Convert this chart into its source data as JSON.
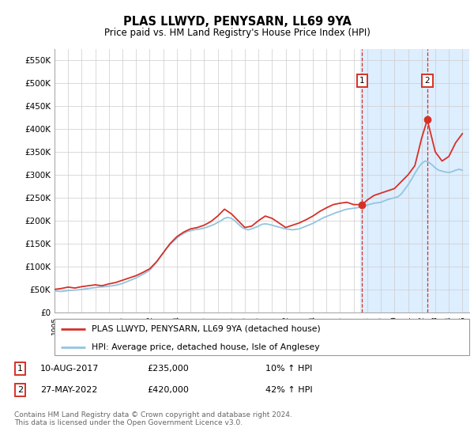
{
  "title": "PLAS LLWYD, PENYSARN, LL69 9YA",
  "subtitle": "Price paid vs. HM Land Registry's House Price Index (HPI)",
  "ylabel_ticks": [
    "£0",
    "£50K",
    "£100K",
    "£150K",
    "£200K",
    "£250K",
    "£300K",
    "£350K",
    "£400K",
    "£450K",
    "£500K",
    "£550K"
  ],
  "ytick_values": [
    0,
    50000,
    100000,
    150000,
    200000,
    250000,
    300000,
    350000,
    400000,
    450000,
    500000,
    550000
  ],
  "ylim": [
    0,
    575000
  ],
  "xlim_start": 1995.0,
  "xlim_end": 2025.5,
  "marker1_x": 2017.608,
  "marker1_y": 235000,
  "marker1_label": "1",
  "marker1_date": "10-AUG-2017",
  "marker1_price": "£235,000",
  "marker1_hpi": "10% ↑ HPI",
  "marker2_x": 2022.414,
  "marker2_y": 420000,
  "marker2_label": "2",
  "marker2_date": "27-MAY-2022",
  "marker2_price": "£420,000",
  "marker2_hpi": "42% ↑ HPI",
  "hpi_color": "#92c5de",
  "price_color": "#d73027",
  "background_shaded_start": 2017.5,
  "background_shaded_end": 2025.5,
  "shaded_color": "#ddeeff",
  "legend_line1": "PLAS LLWYD, PENYSARN, LL69 9YA (detached house)",
  "legend_line2": "HPI: Average price, detached house, Isle of Anglesey",
  "footer": "Contains HM Land Registry data © Crown copyright and database right 2024.\nThis data is licensed under the Open Government Licence v3.0.",
  "hpi_data": [
    [
      1995.0,
      47000
    ],
    [
      1995.25,
      46000
    ],
    [
      1995.5,
      45500
    ],
    [
      1995.75,
      46500
    ],
    [
      1996.0,
      47500
    ],
    [
      1996.25,
      48000
    ],
    [
      1996.5,
      48500
    ],
    [
      1996.75,
      49000
    ],
    [
      1997.0,
      50000
    ],
    [
      1997.25,
      51000
    ],
    [
      1997.5,
      52000
    ],
    [
      1997.75,
      53000
    ],
    [
      1998.0,
      54000
    ],
    [
      1998.25,
      55000
    ],
    [
      1998.5,
      55500
    ],
    [
      1998.75,
      56000
    ],
    [
      1999.0,
      57000
    ],
    [
      1999.25,
      58000
    ],
    [
      1999.5,
      59000
    ],
    [
      1999.75,
      61000
    ],
    [
      2000.0,
      63000
    ],
    [
      2000.25,
      66000
    ],
    [
      2000.5,
      69000
    ],
    [
      2000.75,
      72000
    ],
    [
      2001.0,
      75000
    ],
    [
      2001.25,
      79000
    ],
    [
      2001.5,
      83000
    ],
    [
      2001.75,
      87000
    ],
    [
      2002.0,
      92000
    ],
    [
      2002.25,
      100000
    ],
    [
      2002.5,
      110000
    ],
    [
      2002.75,
      120000
    ],
    [
      2003.0,
      130000
    ],
    [
      2003.25,
      140000
    ],
    [
      2003.5,
      148000
    ],
    [
      2003.75,
      155000
    ],
    [
      2004.0,
      162000
    ],
    [
      2004.25,
      168000
    ],
    [
      2004.5,
      172000
    ],
    [
      2004.75,
      176000
    ],
    [
      2005.0,
      178000
    ],
    [
      2005.25,
      180000
    ],
    [
      2005.5,
      181000
    ],
    [
      2005.75,
      182000
    ],
    [
      2006.0,
      184000
    ],
    [
      2006.25,
      186000
    ],
    [
      2006.5,
      189000
    ],
    [
      2006.75,
      192000
    ],
    [
      2007.0,
      196000
    ],
    [
      2007.25,
      200000
    ],
    [
      2007.5,
      205000
    ],
    [
      2007.75,
      207000
    ],
    [
      2008.0,
      205000
    ],
    [
      2008.25,
      200000
    ],
    [
      2008.5,
      193000
    ],
    [
      2008.75,
      186000
    ],
    [
      2009.0,
      182000
    ],
    [
      2009.25,
      180000
    ],
    [
      2009.5,
      182000
    ],
    [
      2009.75,
      185000
    ],
    [
      2010.0,
      188000
    ],
    [
      2010.25,
      192000
    ],
    [
      2010.5,
      193000
    ],
    [
      2010.75,
      192000
    ],
    [
      2011.0,
      190000
    ],
    [
      2011.25,
      188000
    ],
    [
      2011.5,
      186000
    ],
    [
      2011.75,
      184000
    ],
    [
      2012.0,
      182000
    ],
    [
      2012.25,
      181000
    ],
    [
      2012.5,
      180000
    ],
    [
      2012.75,
      181000
    ],
    [
      2013.0,
      182000
    ],
    [
      2013.25,
      185000
    ],
    [
      2013.5,
      188000
    ],
    [
      2013.75,
      191000
    ],
    [
      2014.0,
      194000
    ],
    [
      2014.25,
      198000
    ],
    [
      2014.5,
      202000
    ],
    [
      2014.75,
      206000
    ],
    [
      2015.0,
      209000
    ],
    [
      2015.25,
      212000
    ],
    [
      2015.5,
      215000
    ],
    [
      2015.75,
      218000
    ],
    [
      2016.0,
      220000
    ],
    [
      2016.25,
      223000
    ],
    [
      2016.5,
      225000
    ],
    [
      2016.75,
      226000
    ],
    [
      2017.0,
      227000
    ],
    [
      2017.25,
      228000
    ],
    [
      2017.5,
      230000
    ],
    [
      2017.75,
      232000
    ],
    [
      2018.0,
      234000
    ],
    [
      2018.25,
      236000
    ],
    [
      2018.5,
      238000
    ],
    [
      2018.75,
      239000
    ],
    [
      2019.0,
      240000
    ],
    [
      2019.25,
      243000
    ],
    [
      2019.5,
      246000
    ],
    [
      2019.75,
      248000
    ],
    [
      2020.0,
      250000
    ],
    [
      2020.25,
      252000
    ],
    [
      2020.5,
      258000
    ],
    [
      2020.75,
      268000
    ],
    [
      2021.0,
      278000
    ],
    [
      2021.25,
      290000
    ],
    [
      2021.5,
      303000
    ],
    [
      2021.75,
      315000
    ],
    [
      2022.0,
      325000
    ],
    [
      2022.25,
      330000
    ],
    [
      2022.5,
      328000
    ],
    [
      2022.75,
      322000
    ],
    [
      2023.0,
      315000
    ],
    [
      2023.25,
      310000
    ],
    [
      2023.5,
      308000
    ],
    [
      2023.75,
      306000
    ],
    [
      2024.0,
      305000
    ],
    [
      2024.25,
      307000
    ],
    [
      2024.5,
      310000
    ],
    [
      2024.75,
      312000
    ],
    [
      2025.0,
      310000
    ]
  ],
  "price_data": [
    [
      1995.0,
      50000
    ],
    [
      1995.5,
      52000
    ],
    [
      1996.0,
      55000
    ],
    [
      1996.5,
      53000
    ],
    [
      1997.0,
      56000
    ],
    [
      1997.5,
      58000
    ],
    [
      1998.0,
      60000
    ],
    [
      1998.5,
      58000
    ],
    [
      1999.0,
      62000
    ],
    [
      1999.5,
      65000
    ],
    [
      2000.0,
      70000
    ],
    [
      2000.5,
      75000
    ],
    [
      2001.0,
      80000
    ],
    [
      2001.5,
      87000
    ],
    [
      2002.0,
      95000
    ],
    [
      2002.5,
      110000
    ],
    [
      2003.0,
      130000
    ],
    [
      2003.5,
      150000
    ],
    [
      2004.0,
      165000
    ],
    [
      2004.5,
      175000
    ],
    [
      2005.0,
      182000
    ],
    [
      2005.5,
      185000
    ],
    [
      2006.0,
      190000
    ],
    [
      2006.5,
      198000
    ],
    [
      2007.0,
      210000
    ],
    [
      2007.5,
      225000
    ],
    [
      2008.0,
      215000
    ],
    [
      2008.5,
      200000
    ],
    [
      2009.0,
      185000
    ],
    [
      2009.5,
      188000
    ],
    [
      2010.0,
      200000
    ],
    [
      2010.5,
      210000
    ],
    [
      2011.0,
      205000
    ],
    [
      2011.5,
      195000
    ],
    [
      2012.0,
      185000
    ],
    [
      2012.5,
      190000
    ],
    [
      2013.0,
      195000
    ],
    [
      2013.5,
      202000
    ],
    [
      2014.0,
      210000
    ],
    [
      2014.5,
      220000
    ],
    [
      2015.0,
      228000
    ],
    [
      2015.5,
      235000
    ],
    [
      2016.0,
      238000
    ],
    [
      2016.5,
      240000
    ],
    [
      2017.0,
      235000
    ],
    [
      2017.608,
      235000
    ],
    [
      2017.75,
      238000
    ],
    [
      2018.0,
      245000
    ],
    [
      2018.5,
      255000
    ],
    [
      2019.0,
      260000
    ],
    [
      2019.5,
      265000
    ],
    [
      2020.0,
      270000
    ],
    [
      2020.5,
      285000
    ],
    [
      2021.0,
      300000
    ],
    [
      2021.5,
      320000
    ],
    [
      2022.0,
      380000
    ],
    [
      2022.414,
      420000
    ],
    [
      2022.75,
      380000
    ],
    [
      2023.0,
      350000
    ],
    [
      2023.5,
      330000
    ],
    [
      2024.0,
      340000
    ],
    [
      2024.5,
      370000
    ],
    [
      2025.0,
      390000
    ]
  ]
}
